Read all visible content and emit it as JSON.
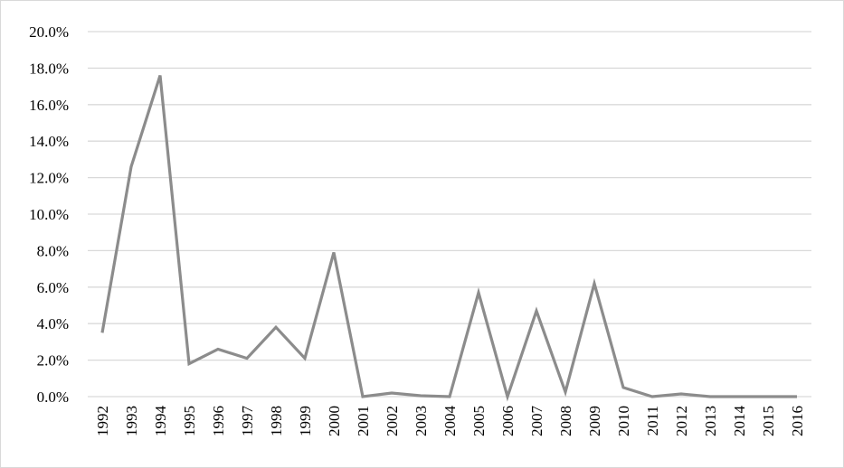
{
  "chart_data": {
    "type": "line",
    "title": "",
    "xlabel": "",
    "ylabel": "",
    "categories": [
      "1992",
      "1993",
      "1994",
      "1995",
      "1996",
      "1997",
      "1998",
      "1999",
      "2000",
      "2001",
      "2002",
      "2003",
      "2004",
      "2005",
      "2006",
      "2007",
      "2008",
      "2009",
      "2010",
      "2011",
      "2012",
      "2013",
      "2014",
      "2015",
      "2016"
    ],
    "series": [
      {
        "values": [
          3.5,
          12.6,
          17.6,
          1.8,
          2.6,
          2.1,
          3.8,
          2.1,
          7.9,
          0.0,
          0.2,
          0.05,
          0.0,
          5.7,
          0.0,
          4.7,
          0.25,
          6.2,
          0.5,
          0.0,
          0.15,
          0.0,
          0.0,
          0.0,
          0.0
        ]
      }
    ],
    "ylim": [
      0,
      20
    ],
    "yticks": [
      "0.0%",
      "2.0%",
      "4.0%",
      "6.0%",
      "8.0%",
      "10.0%",
      "12.0%",
      "14.0%",
      "16.0%",
      "18.0%",
      "20.0%"
    ],
    "grid": true,
    "legend": "none",
    "colors": {
      "line": "#8c8c8c",
      "grid": "#d9d9d9",
      "text": "#000000"
    }
  }
}
